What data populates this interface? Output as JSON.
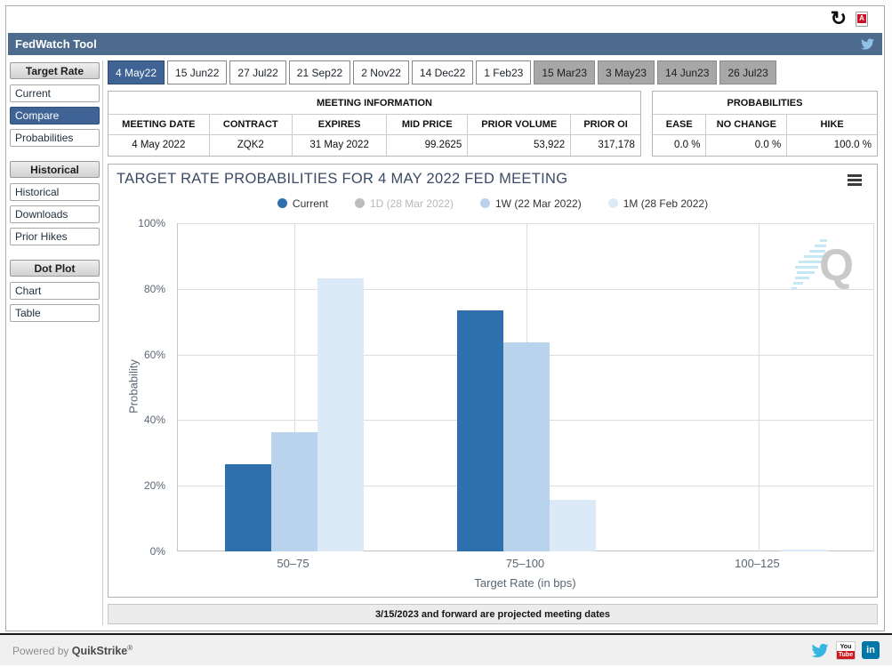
{
  "icons": {
    "refresh_glyph": "↻",
    "pdf_letter": "A",
    "linkedin_label": "in",
    "youtube_top": "You",
    "youtube_bottom": "Tube"
  },
  "header": {
    "title": "FedWatch Tool"
  },
  "sidebar": {
    "sections": [
      {
        "title": "Target Rate",
        "items": [
          {
            "label": "Current",
            "selected": false
          },
          {
            "label": "Compare",
            "selected": true
          },
          {
            "label": "Probabilities",
            "selected": false
          }
        ]
      },
      {
        "title": "Historical",
        "items": [
          {
            "label": "Historical",
            "selected": false
          },
          {
            "label": "Downloads",
            "selected": false
          },
          {
            "label": "Prior Hikes",
            "selected": false
          }
        ]
      },
      {
        "title": "Dot Plot",
        "items": [
          {
            "label": "Chart",
            "selected": false
          },
          {
            "label": "Table",
            "selected": false
          }
        ]
      }
    ]
  },
  "tabs": [
    {
      "label": "4 May22",
      "state": "selected"
    },
    {
      "label": "15 Jun22",
      "state": "normal"
    },
    {
      "label": "27 Jul22",
      "state": "normal"
    },
    {
      "label": "21 Sep22",
      "state": "normal"
    },
    {
      "label": "2 Nov22",
      "state": "normal"
    },
    {
      "label": "14 Dec22",
      "state": "normal"
    },
    {
      "label": "1 Feb23",
      "state": "normal"
    },
    {
      "label": "15 Mar23",
      "state": "projected"
    },
    {
      "label": "3 May23",
      "state": "projected"
    },
    {
      "label": "14 Jun23",
      "state": "projected"
    },
    {
      "label": "26 Jul23",
      "state": "projected"
    }
  ],
  "meeting_info": {
    "title": "MEETING INFORMATION",
    "columns": [
      "MEETING DATE",
      "CONTRACT",
      "EXPIRES",
      "MID PRICE",
      "PRIOR VOLUME",
      "PRIOR OI"
    ],
    "values": [
      "4 May 2022",
      "ZQK2",
      "31 May 2022",
      "99.2625",
      "53,922",
      "317,178"
    ]
  },
  "probabilities": {
    "title": "PROBABILITIES",
    "columns": [
      "EASE",
      "NO CHANGE",
      "HIKE"
    ],
    "values": [
      "0.0 %",
      "0.0 %",
      "100.0 %"
    ]
  },
  "chart_data": {
    "type": "bar",
    "title": "TARGET RATE PROBABILITIES FOR 4 MAY 2022 FED MEETING",
    "categories": [
      "50–75",
      "75–100",
      "100–125"
    ],
    "series": [
      {
        "name": "Current",
        "color": "#2e6fad",
        "enabled": true,
        "values": [
          26.6,
          73.4,
          0.0
        ]
      },
      {
        "name": "1D (28 Mar 2022)",
        "color": "#bdbdbd",
        "enabled": false,
        "values": [
          0.0,
          0.0,
          0.0
        ]
      },
      {
        "name": "1W (22 Mar 2022)",
        "color": "#b9d3ec",
        "enabled": true,
        "values": [
          36.2,
          63.7,
          0.0
        ]
      },
      {
        "name": "1M (28 Feb 2022)",
        "color": "#dce9f6",
        "enabled": true,
        "values": [
          83.3,
          15.8,
          0.6
        ]
      }
    ],
    "xlabel": "Target Rate (in bps)",
    "ylabel": "Probability",
    "ylim": [
      0,
      100
    ],
    "yticks": [
      "0%",
      "20%",
      "40%",
      "60%",
      "80%",
      "100%"
    ],
    "grid": true,
    "legend_position": "top",
    "watermark": "Q"
  },
  "footnote": "3/15/2023 and forward are projected meeting dates",
  "footer": {
    "powered_by": "Powered by",
    "brand": "QuikStrike",
    "reg": "®"
  }
}
